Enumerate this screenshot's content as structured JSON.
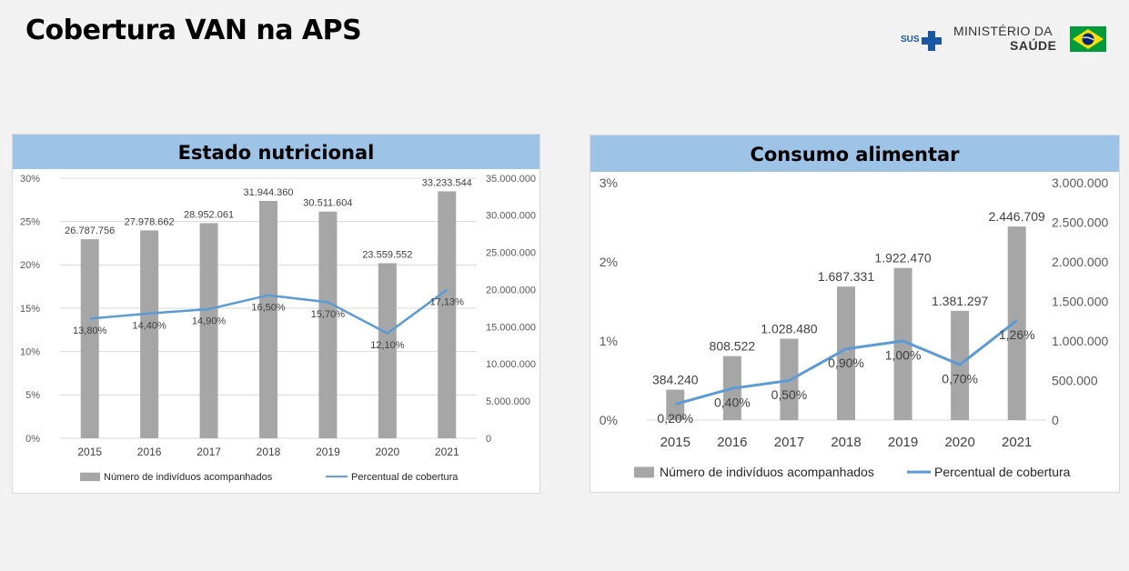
{
  "page": {
    "title": "Cobertura VAN na APS",
    "logo": {
      "sus": "SUS",
      "line1": "MINISTÉRIO DA",
      "line2": "SAÚDE",
      "icons": [
        "sus-cross-icon",
        "brazil-flag-icon"
      ]
    }
  },
  "colors": {
    "bar": "#a6a6a6",
    "line": "#5b9bd5",
    "header": "#9dc3e6",
    "grid": "#d9d9d9"
  },
  "chart_data": [
    {
      "type": "bar+line",
      "title": "Estado nutricional",
      "categories": [
        "2015",
        "2016",
        "2017",
        "2018",
        "2019",
        "2020",
        "2021"
      ],
      "series": [
        {
          "name": "Número de indivíduos acompanhados",
          "axis": "right",
          "kind": "bar",
          "values": [
            26787756,
            27978662,
            28952061,
            31944360,
            30511604,
            23559552,
            33233544
          ],
          "labels": [
            "26.787.756",
            "27.978.662",
            "28.952.061",
            "31.944.360",
            "30.511.604",
            "23.559.552",
            "33.233.544"
          ]
        },
        {
          "name": "Percentual de cobertura",
          "axis": "left",
          "kind": "line",
          "values": [
            13.8,
            14.4,
            14.9,
            16.5,
            15.7,
            12.1,
            17.13
          ],
          "labels": [
            "13,80%",
            "14,40%",
            "14,90%",
            "16,50%",
            "15,70%",
            "12,10%",
            "17,13%"
          ]
        }
      ],
      "left_axis": {
        "min": 0,
        "max": 30,
        "ticks": [
          0,
          5,
          10,
          15,
          20,
          25,
          30
        ],
        "tick_labels": [
          "0%",
          "5%",
          "10%",
          "15%",
          "20%",
          "25%",
          "30%"
        ]
      },
      "right_axis": {
        "min": 0,
        "max": 35000000,
        "ticks": [
          0,
          5000000,
          10000000,
          15000000,
          20000000,
          25000000,
          30000000,
          35000000
        ],
        "tick_labels": [
          "0",
          "5.000.000",
          "10.000.000",
          "15.000.000",
          "20.000.000",
          "25.000.000",
          "30.000.000",
          "35.000.000"
        ]
      },
      "grid": true,
      "legend": "bottom"
    },
    {
      "type": "bar+line",
      "title": "Consumo alimentar",
      "categories": [
        "2015",
        "2016",
        "2017",
        "2018",
        "2019",
        "2020",
        "2021"
      ],
      "series": [
        {
          "name": "Número de indivíduos acompanhados",
          "axis": "right",
          "kind": "bar",
          "values": [
            384240,
            808522,
            1028480,
            1687331,
            1922470,
            1381297,
            2446709
          ],
          "labels": [
            "384.240",
            "808.522",
            "1.028.480",
            "1.687.331",
            "1.922.470",
            "1.381.297",
            "2.446.709"
          ]
        },
        {
          "name": "Percentual de cobertura",
          "axis": "left",
          "kind": "line",
          "values": [
            0.2,
            0.4,
            0.5,
            0.9,
            1.0,
            0.7,
            1.26
          ],
          "labels": [
            "0,20%",
            "0,40%",
            "0,50%",
            "0,90%",
            "1,00%",
            "0,70%",
            "1,26%"
          ]
        }
      ],
      "left_axis": {
        "min": 0,
        "max": 3,
        "ticks": [
          0,
          1,
          2,
          3
        ],
        "tick_labels": [
          "0%",
          "1%",
          "2%",
          "3%"
        ]
      },
      "right_axis": {
        "min": 0,
        "max": 3000000,
        "ticks": [
          0,
          500000,
          1000000,
          1500000,
          2000000,
          2500000,
          3000000
        ],
        "tick_labels": [
          "0",
          "500.000",
          "1.000.000",
          "1.500.000",
          "2.000.000",
          "2.500.000",
          "3.000.000"
        ]
      },
      "grid": false,
      "legend": "bottom"
    }
  ]
}
